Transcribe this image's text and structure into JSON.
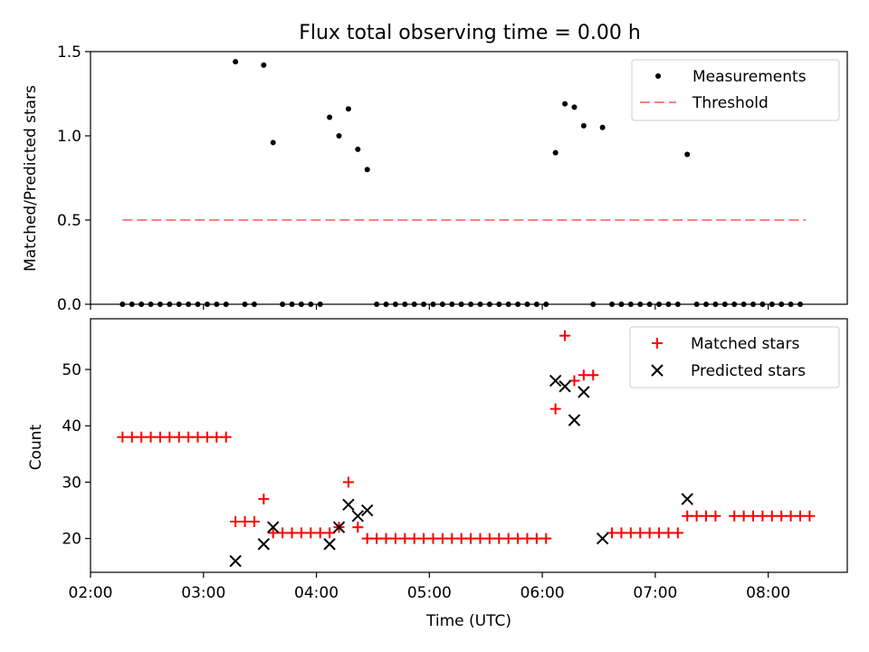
{
  "title": "Flux total observing time = 0.00 h",
  "chart_data": [
    {
      "type": "scatter",
      "ylabel": "Matched/Predicted stars",
      "ylim": [
        0,
        1.5
      ],
      "yticks": [
        0.0,
        0.5,
        1.0,
        1.5
      ],
      "ytick_labels": [
        "0.0",
        "0.5",
        "1.0",
        "1.5"
      ],
      "xlim": [
        "02:00",
        "08:42"
      ],
      "xticks": [
        "02:00",
        "03:00",
        "04:00",
        "05:00",
        "06:00",
        "07:00",
        "08:00"
      ],
      "legend_position": "top-right",
      "legend": [
        {
          "label": "Measurements",
          "marker": "dot",
          "color": "#000000"
        },
        {
          "label": "Threshold",
          "marker": "dashed-line",
          "color": "#ff7f7f"
        }
      ],
      "threshold": {
        "value": 0.5,
        "x_start": "02:17",
        "x_end": "08:20"
      },
      "series": [
        {
          "name": "Measurements",
          "color": "#000000",
          "points": [
            [
              "02:17",
              0
            ],
            [
              "02:22",
              0
            ],
            [
              "02:27",
              0
            ],
            [
              "02:32",
              0
            ],
            [
              "02:37",
              0
            ],
            [
              "02:42",
              0
            ],
            [
              "02:47",
              0
            ],
            [
              "02:52",
              0
            ],
            [
              "02:57",
              0
            ],
            [
              "03:02",
              0
            ],
            [
              "03:07",
              0
            ],
            [
              "03:12",
              0
            ],
            [
              "03:17",
              1.44
            ],
            [
              "03:22",
              0
            ],
            [
              "03:27",
              0
            ],
            [
              "03:32",
              1.42
            ],
            [
              "03:37",
              0.96
            ],
            [
              "03:42",
              0
            ],
            [
              "03:47",
              0
            ],
            [
              "03:52",
              0
            ],
            [
              "03:57",
              0
            ],
            [
              "04:02",
              0
            ],
            [
              "04:07",
              1.11
            ],
            [
              "04:12",
              1.0
            ],
            [
              "04:17",
              1.16
            ],
            [
              "04:22",
              0.92
            ],
            [
              "04:27",
              0.8
            ],
            [
              "04:32",
              0
            ],
            [
              "04:37",
              0
            ],
            [
              "04:42",
              0
            ],
            [
              "04:47",
              0
            ],
            [
              "04:52",
              0
            ],
            [
              "04:57",
              0
            ],
            [
              "05:02",
              0
            ],
            [
              "05:07",
              0
            ],
            [
              "05:12",
              0
            ],
            [
              "05:17",
              0
            ],
            [
              "05:22",
              0
            ],
            [
              "05:27",
              0
            ],
            [
              "05:32",
              0
            ],
            [
              "05:37",
              0
            ],
            [
              "05:42",
              0
            ],
            [
              "05:47",
              0
            ],
            [
              "05:52",
              0
            ],
            [
              "05:57",
              0
            ],
            [
              "06:02",
              0
            ],
            [
              "06:07",
              0.9
            ],
            [
              "06:12",
              1.19
            ],
            [
              "06:17",
              1.17
            ],
            [
              "06:22",
              1.06
            ],
            [
              "06:27",
              0
            ],
            [
              "06:32",
              1.05
            ],
            [
              "06:37",
              0
            ],
            [
              "06:42",
              0
            ],
            [
              "06:47",
              0
            ],
            [
              "06:52",
              0
            ],
            [
              "06:57",
              0
            ],
            [
              "07:02",
              0
            ],
            [
              "07:07",
              0
            ],
            [
              "07:12",
              0
            ],
            [
              "07:17",
              0.89
            ],
            [
              "07:22",
              0
            ],
            [
              "07:27",
              0
            ],
            [
              "07:32",
              0
            ],
            [
              "07:37",
              0
            ],
            [
              "07:42",
              0
            ],
            [
              "07:47",
              0
            ],
            [
              "07:52",
              0
            ],
            [
              "07:57",
              0
            ],
            [
              "08:02",
              0
            ],
            [
              "08:07",
              0
            ],
            [
              "08:12",
              0
            ],
            [
              "08:17",
              0
            ]
          ]
        }
      ]
    },
    {
      "type": "scatter",
      "ylabel": "Count",
      "xlabel": "Time (UTC)",
      "ylim": [
        14,
        59
      ],
      "yticks": [
        20,
        30,
        40,
        50
      ],
      "ytick_labels": [
        "20",
        "30",
        "40",
        "50"
      ],
      "xlim": [
        "02:00",
        "08:42"
      ],
      "xticks": [
        "02:00",
        "03:00",
        "04:00",
        "05:00",
        "06:00",
        "07:00",
        "08:00"
      ],
      "xtick_labels": [
        "02:00",
        "03:00",
        "04:00",
        "05:00",
        "06:00",
        "07:00",
        "08:00"
      ],
      "legend_position": "top-right",
      "legend": [
        {
          "label": "Matched stars",
          "marker": "plus",
          "color": "#ff0000"
        },
        {
          "label": "Predicted stars",
          "marker": "x",
          "color": "#000000"
        }
      ],
      "series": [
        {
          "name": "Matched stars",
          "color": "#ff0000",
          "marker": "plus",
          "points": [
            [
              "02:17",
              38
            ],
            [
              "02:22",
              38
            ],
            [
              "02:27",
              38
            ],
            [
              "02:32",
              38
            ],
            [
              "02:37",
              38
            ],
            [
              "02:42",
              38
            ],
            [
              "02:47",
              38
            ],
            [
              "02:52",
              38
            ],
            [
              "02:57",
              38
            ],
            [
              "03:02",
              38
            ],
            [
              "03:07",
              38
            ],
            [
              "03:12",
              38
            ],
            [
              "03:17",
              23
            ],
            [
              "03:22",
              23
            ],
            [
              "03:27",
              23
            ],
            [
              "03:32",
              27
            ],
            [
              "03:37",
              21
            ],
            [
              "03:42",
              21
            ],
            [
              "03:47",
              21
            ],
            [
              "03:52",
              21
            ],
            [
              "03:57",
              21
            ],
            [
              "04:02",
              21
            ],
            [
              "04:07",
              21
            ],
            [
              "04:12",
              22
            ],
            [
              "04:17",
              30
            ],
            [
              "04:22",
              22
            ],
            [
              "04:27",
              20
            ],
            [
              "04:32",
              20
            ],
            [
              "04:37",
              20
            ],
            [
              "04:42",
              20
            ],
            [
              "04:47",
              20
            ],
            [
              "04:52",
              20
            ],
            [
              "04:57",
              20
            ],
            [
              "05:02",
              20
            ],
            [
              "05:07",
              20
            ],
            [
              "05:12",
              20
            ],
            [
              "05:17",
              20
            ],
            [
              "05:22",
              20
            ],
            [
              "05:27",
              20
            ],
            [
              "05:32",
              20
            ],
            [
              "05:37",
              20
            ],
            [
              "05:42",
              20
            ],
            [
              "05:47",
              20
            ],
            [
              "05:52",
              20
            ],
            [
              "05:57",
              20
            ],
            [
              "06:02",
              20
            ],
            [
              "06:07",
              43
            ],
            [
              "06:12",
              56
            ],
            [
              "06:17",
              48
            ],
            [
              "06:22",
              49
            ],
            [
              "06:27",
              49
            ],
            [
              "06:37",
              21
            ],
            [
              "06:42",
              21
            ],
            [
              "06:47",
              21
            ],
            [
              "06:52",
              21
            ],
            [
              "06:57",
              21
            ],
            [
              "07:02",
              21
            ],
            [
              "07:07",
              21
            ],
            [
              "07:12",
              21
            ],
            [
              "07:17",
              24
            ],
            [
              "07:22",
              24
            ],
            [
              "07:27",
              24
            ],
            [
              "07:32",
              24
            ],
            [
              "07:42",
              24
            ],
            [
              "07:47",
              24
            ],
            [
              "07:52",
              24
            ],
            [
              "07:57",
              24
            ],
            [
              "08:02",
              24
            ],
            [
              "08:07",
              24
            ],
            [
              "08:12",
              24
            ],
            [
              "08:17",
              24
            ],
            [
              "08:22",
              24
            ]
          ]
        },
        {
          "name": "Predicted stars",
          "color": "#000000",
          "marker": "x",
          "points": [
            [
              "03:17",
              16
            ],
            [
              "03:32",
              19
            ],
            [
              "03:37",
              22
            ],
            [
              "04:07",
              19
            ],
            [
              "04:12",
              22
            ],
            [
              "04:17",
              26
            ],
            [
              "04:22",
              24
            ],
            [
              "04:27",
              25
            ],
            [
              "06:07",
              48
            ],
            [
              "06:12",
              47
            ],
            [
              "06:17",
              41
            ],
            [
              "06:22",
              46
            ],
            [
              "06:32",
              20
            ],
            [
              "07:17",
              27
            ]
          ]
        }
      ]
    }
  ]
}
